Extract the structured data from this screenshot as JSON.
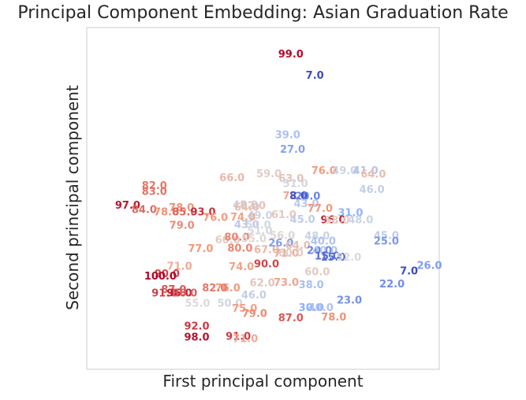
{
  "chart_data": {
    "type": "scatter",
    "title": "Principal Component Embedding: Asian Graduation Rate",
    "xlabel": "First principal component",
    "ylabel": "Second principal component",
    "xlim": [
      0,
      100
    ],
    "ylim": [
      0,
      100
    ],
    "grid": false,
    "point_style": "text-label",
    "colormap": "coolwarm_r",
    "color_range": [
      7,
      100
    ],
    "points": [
      {
        "x": 57.9,
        "y": 92.1,
        "label": "99.0"
      },
      {
        "x": 64.7,
        "y": 85.8,
        "label": "7.0"
      },
      {
        "x": 57.0,
        "y": 68.4,
        "label": "39.0"
      },
      {
        "x": 58.4,
        "y": 64.2,
        "label": "27.0"
      },
      {
        "x": 67.3,
        "y": 58.0,
        "label": "76.0"
      },
      {
        "x": 73.2,
        "y": 58.0,
        "label": "49.0"
      },
      {
        "x": 79.1,
        "y": 57.9,
        "label": "41.0"
      },
      {
        "x": 81.3,
        "y": 56.9,
        "label": "64.0"
      },
      {
        "x": 41.2,
        "y": 55.9,
        "label": "66.0"
      },
      {
        "x": 51.7,
        "y": 57.0,
        "label": "59.0"
      },
      {
        "x": 58.0,
        "y": 55.7,
        "label": "63.0"
      },
      {
        "x": 59.2,
        "y": 54.2,
        "label": "51.0"
      },
      {
        "x": 80.9,
        "y": 52.4,
        "label": "46.0"
      },
      {
        "x": 19.2,
        "y": 53.6,
        "label": "82.0"
      },
      {
        "x": 19.2,
        "y": 51.8,
        "label": "83.0"
      },
      {
        "x": 59.2,
        "y": 50.6,
        "label": "72.0"
      },
      {
        "x": 60.1,
        "y": 50.6,
        "label": "8.0"
      },
      {
        "x": 62.7,
        "y": 50.5,
        "label": "20.0"
      },
      {
        "x": 62.3,
        "y": 48.3,
        "label": "43.0"
      },
      {
        "x": 45.0,
        "y": 47.9,
        "label": "48.0"
      },
      {
        "x": 45.4,
        "y": 47.2,
        "label": "64.0"
      },
      {
        "x": 47.2,
        "y": 47.7,
        "label": "62.0"
      },
      {
        "x": 11.6,
        "y": 47.8,
        "label": "97.0"
      },
      {
        "x": 16.3,
        "y": 46.5,
        "label": "84.0"
      },
      {
        "x": 26.9,
        "y": 47.1,
        "label": "78.0"
      },
      {
        "x": 22.6,
        "y": 45.8,
        "label": "78.0"
      },
      {
        "x": 27.8,
        "y": 45.8,
        "label": "85.0"
      },
      {
        "x": 33.0,
        "y": 45.8,
        "label": "93.0"
      },
      {
        "x": 66.2,
        "y": 46.9,
        "label": "77.0"
      },
      {
        "x": 74.8,
        "y": 45.6,
        "label": "31.0"
      },
      {
        "x": 36.5,
        "y": 44.2,
        "label": "76.0"
      },
      {
        "x": 44.3,
        "y": 44.4,
        "label": "74.0"
      },
      {
        "x": 49.1,
        "y": 44.8,
        "label": "49.0"
      },
      {
        "x": 55.9,
        "y": 45.1,
        "label": "61.0"
      },
      {
        "x": 61.2,
        "y": 43.7,
        "label": "45.0"
      },
      {
        "x": 69.9,
        "y": 43.6,
        "label": "96.0"
      },
      {
        "x": 71.0,
        "y": 43.4,
        "label": "58.0"
      },
      {
        "x": 77.7,
        "y": 43.6,
        "label": "48.0"
      },
      {
        "x": 27.0,
        "y": 41.9,
        "label": "79.0"
      },
      {
        "x": 45.4,
        "y": 42.2,
        "label": "43.0"
      },
      {
        "x": 48.7,
        "y": 42.0,
        "label": "51.0"
      },
      {
        "x": 49.1,
        "y": 40.3,
        "label": "51.0"
      },
      {
        "x": 40.0,
        "y": 37.7,
        "label": "60.0"
      },
      {
        "x": 42.6,
        "y": 38.5,
        "label": "80.0"
      },
      {
        "x": 47.4,
        "y": 38.0,
        "label": "55.0"
      },
      {
        "x": 55.5,
        "y": 38.9,
        "label": "56.0"
      },
      {
        "x": 65.4,
        "y": 38.8,
        "label": "48.0"
      },
      {
        "x": 67.1,
        "y": 37.3,
        "label": "40.0"
      },
      {
        "x": 85.0,
        "y": 38.9,
        "label": "45.0"
      },
      {
        "x": 85.0,
        "y": 37.3,
        "label": "25.0"
      },
      {
        "x": 32.3,
        "y": 35.1,
        "label": "77.0"
      },
      {
        "x": 43.5,
        "y": 35.3,
        "label": "80.0"
      },
      {
        "x": 51.0,
        "y": 34.8,
        "label": "67.0"
      },
      {
        "x": 55.1,
        "y": 36.7,
        "label": "26.0"
      },
      {
        "x": 59.9,
        "y": 36.1,
        "label": "64.0"
      },
      {
        "x": 56.6,
        "y": 33.7,
        "label": "71.0"
      },
      {
        "x": 57.9,
        "y": 33.9,
        "label": "60.0"
      },
      {
        "x": 66.0,
        "y": 34.6,
        "label": "20.0"
      },
      {
        "x": 67.6,
        "y": 34.6,
        "label": "40.0"
      },
      {
        "x": 68.2,
        "y": 33.0,
        "label": "15.0"
      },
      {
        "x": 69.9,
        "y": 32.6,
        "label": "15.0"
      },
      {
        "x": 74.3,
        "y": 32.6,
        "label": "52.0"
      },
      {
        "x": 26.3,
        "y": 30.0,
        "label": "71.0"
      },
      {
        "x": 43.9,
        "y": 29.8,
        "label": "74.0"
      },
      {
        "x": 51.0,
        "y": 30.6,
        "label": "90.0"
      },
      {
        "x": 22.8,
        "y": 27.8,
        "label": "90.0"
      },
      {
        "x": 20.9,
        "y": 27.1,
        "label": "100.0"
      },
      {
        "x": 65.4,
        "y": 28.3,
        "label": "60.0"
      },
      {
        "x": 91.4,
        "y": 28.6,
        "label": "7.0"
      },
      {
        "x": 97.2,
        "y": 30.2,
        "label": "26.0"
      },
      {
        "x": 40.0,
        "y": 23.6,
        "label": "76.0"
      },
      {
        "x": 36.3,
        "y": 23.6,
        "label": "82.0"
      },
      {
        "x": 24.7,
        "y": 23.2,
        "label": "87.0"
      },
      {
        "x": 22.0,
        "y": 22.1,
        "label": "91.0"
      },
      {
        "x": 26.3,
        "y": 22.1,
        "label": "96.0"
      },
      {
        "x": 27.8,
        "y": 22.1,
        "label": "86.0"
      },
      {
        "x": 49.8,
        "y": 25.1,
        "label": "62.0"
      },
      {
        "x": 56.6,
        "y": 25.2,
        "label": "73.0"
      },
      {
        "x": 63.7,
        "y": 24.5,
        "label": "38.0"
      },
      {
        "x": 86.6,
        "y": 24.8,
        "label": "22.0"
      },
      {
        "x": 47.4,
        "y": 21.6,
        "label": "46.0"
      },
      {
        "x": 31.4,
        "y": 19.1,
        "label": "55.0"
      },
      {
        "x": 40.6,
        "y": 19.1,
        "label": "50.0"
      },
      {
        "x": 74.5,
        "y": 20.1,
        "label": "23.0"
      },
      {
        "x": 63.7,
        "y": 17.9,
        "label": "30.0"
      },
      {
        "x": 66.4,
        "y": 17.9,
        "label": "40.0"
      },
      {
        "x": 44.8,
        "y": 17.6,
        "label": "75.0"
      },
      {
        "x": 47.6,
        "y": 16.1,
        "label": "79.0"
      },
      {
        "x": 57.9,
        "y": 14.9,
        "label": "87.0"
      },
      {
        "x": 70.1,
        "y": 15.1,
        "label": "78.0"
      },
      {
        "x": 31.2,
        "y": 12.4,
        "label": "92.0"
      },
      {
        "x": 31.2,
        "y": 9.2,
        "label": "98.0"
      },
      {
        "x": 43.0,
        "y": 9.4,
        "label": "91.0"
      },
      {
        "x": 45.0,
        "y": 8.8,
        "label": "71.0"
      }
    ]
  }
}
